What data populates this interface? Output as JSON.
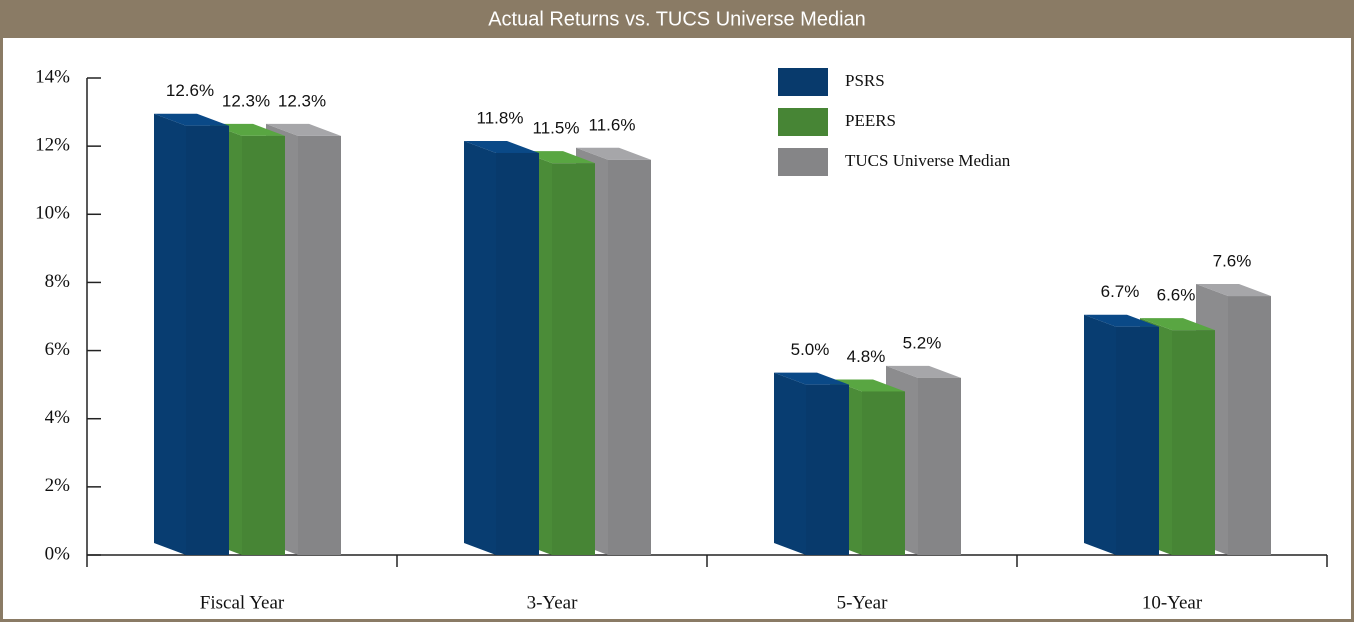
{
  "chart_data": {
    "type": "bar3d",
    "title": "Actual Returns vs. TUCS Universe Median",
    "categories": [
      "Fiscal Year",
      "3-Year",
      "5-Year",
      "10-Year"
    ],
    "series": [
      {
        "name": "PSRS",
        "color": "#083a6c",
        "values": [
          12.6,
          11.8,
          5.0,
          6.7
        ],
        "value_labels": [
          "12.6%",
          "11.8%",
          "5.0%",
          "6.7%"
        ]
      },
      {
        "name": "PEERS",
        "color": "#478535",
        "values": [
          12.3,
          11.5,
          4.8,
          6.6
        ],
        "value_labels": [
          "12.3%",
          "11.5%",
          "4.8%",
          "6.6%"
        ]
      },
      {
        "name": "TUCS Universe Median",
        "color": "#858587",
        "values": [
          12.3,
          11.6,
          5.2,
          7.6
        ],
        "value_labels": [
          "12.3%",
          "11.6%",
          "5.2%",
          "7.6%"
        ]
      }
    ],
    "ylim": [
      0,
      14
    ],
    "yticks": [
      {
        "value": 0,
        "label": "0%"
      },
      {
        "value": 2,
        "label": "2%"
      },
      {
        "value": 4,
        "label": "4%"
      },
      {
        "value": 6,
        "label": "6%"
      },
      {
        "value": 8,
        "label": "8%"
      },
      {
        "value": 10,
        "label": "10%"
      },
      {
        "value": 12,
        "label": "12%"
      },
      {
        "value": 14,
        "label": "14%"
      }
    ],
    "legend": "top-right"
  }
}
